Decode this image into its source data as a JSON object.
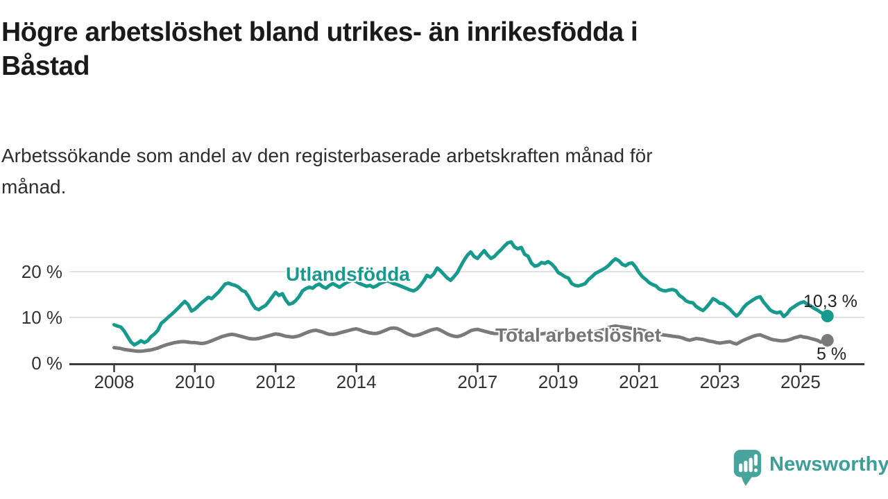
{
  "chart_data": {
    "type": "line",
    "title_lines": [
      "Högre arbetslöshet bland utrikes- än inrikesfödda i",
      "Båstad"
    ],
    "subtitle_lines": [
      "Arbetssökande som andel av den registerbaserade arbetskraften månad för",
      "månad."
    ],
    "xlabel": "",
    "ylabel": "",
    "x_start_year": 2008,
    "points_per_year": 12,
    "xlim": [
      2006.9,
      2026.6
    ],
    "ylim": [
      0,
      27.5
    ],
    "grid": "horizontal",
    "legend_position": "inline-labels",
    "x_tick_years": [
      2008,
      2010,
      2012,
      2014,
      2017,
      2019,
      2021,
      2023,
      2025
    ],
    "y_ticks": [
      {
        "value": 0,
        "label": "0 %"
      },
      {
        "value": 10,
        "label": "10 %"
      },
      {
        "value": 20,
        "label": "20 %"
      }
    ],
    "series": [
      {
        "name": "Utlandsfödda",
        "color": "#169a8d",
        "end_label": "10,3 %",
        "end_value": 10.3,
        "values": [
          8.4,
          8.1,
          7.9,
          7.0,
          5.8,
          4.6,
          4.0,
          4.4,
          4.9,
          4.5,
          4.9,
          5.8,
          6.4,
          7.2,
          8.7,
          9.3,
          10.0,
          10.6,
          11.3,
          12.0,
          12.8,
          13.5,
          12.8,
          11.4,
          11.8,
          12.5,
          13.2,
          13.8,
          14.4,
          14.1,
          14.8,
          15.5,
          16.4,
          17.3,
          17.5,
          17.2,
          17.0,
          16.6,
          15.9,
          15.6,
          14.5,
          13.0,
          12.0,
          11.7,
          12.2,
          12.6,
          13.5,
          14.5,
          15.5,
          14.8,
          15.2,
          13.8,
          12.9,
          13.1,
          13.7,
          14.6,
          15.8,
          16.3,
          16.6,
          16.4,
          17.0,
          17.3,
          16.7,
          16.4,
          17.0,
          17.4,
          17.0,
          16.6,
          17.1,
          17.6,
          17.9,
          18.1,
          17.8,
          17.4,
          17.1,
          16.8,
          17.0,
          16.6,
          16.9,
          17.4,
          17.7,
          18.0,
          17.8,
          17.4,
          17.2,
          16.9,
          16.6,
          16.3,
          16.0,
          15.8,
          16.2,
          17.0,
          18.0,
          19.2,
          18.8,
          19.5,
          20.8,
          20.2,
          19.4,
          18.6,
          18.1,
          18.9,
          19.8,
          21.2,
          22.5,
          23.6,
          24.3,
          23.3,
          22.9,
          23.8,
          24.6,
          23.6,
          22.9,
          23.3,
          24.1,
          24.8,
          25.6,
          26.3,
          26.5,
          25.4,
          25.0,
          25.3,
          23.8,
          23.4,
          21.9,
          21.2,
          21.4,
          22.0,
          21.8,
          22.2,
          21.7,
          20.9,
          19.8,
          19.4,
          18.9,
          18.6,
          17.4,
          17.0,
          16.9,
          17.1,
          17.4,
          18.3,
          18.9,
          19.6,
          20.0,
          20.4,
          20.8,
          21.4,
          22.2,
          22.8,
          22.4,
          21.6,
          21.3,
          21.8,
          21.9,
          21.0,
          19.8,
          18.9,
          18.3,
          17.6,
          17.2,
          16.9,
          16.2,
          15.9,
          15.8,
          16.0,
          16.1,
          15.8,
          14.8,
          14.3,
          13.6,
          13.3,
          13.2,
          12.4,
          11.9,
          11.5,
          12.2,
          13.1,
          14.1,
          13.7,
          13.1,
          13.0,
          12.4,
          11.8,
          11.0,
          10.3,
          11.0,
          12.1,
          12.9,
          13.4,
          13.9,
          14.3,
          14.5,
          13.4,
          12.5,
          11.6,
          11.2,
          11.0,
          11.2,
          10.2,
          10.8,
          11.8,
          12.3,
          12.8,
          13.2,
          13.4,
          12.9,
          12.5,
          12.0,
          11.6,
          11.1,
          10.7,
          10.3
        ]
      },
      {
        "name": "Total arbetslöshet",
        "color": "#7a7a7a",
        "end_label": "5 %",
        "end_value": 5.0,
        "values": [
          3.4,
          3.3,
          3.2,
          3.0,
          2.9,
          2.8,
          2.7,
          2.6,
          2.6,
          2.7,
          2.8,
          2.9,
          3.1,
          3.3,
          3.6,
          3.9,
          4.1,
          4.3,
          4.5,
          4.6,
          4.7,
          4.7,
          4.6,
          4.5,
          4.5,
          4.4,
          4.3,
          4.4,
          4.6,
          4.9,
          5.2,
          5.5,
          5.8,
          6.0,
          6.2,
          6.3,
          6.2,
          6.0,
          5.8,
          5.6,
          5.4,
          5.3,
          5.3,
          5.4,
          5.6,
          5.8,
          6.0,
          6.2,
          6.4,
          6.3,
          6.1,
          5.9,
          5.8,
          5.7,
          5.8,
          6.0,
          6.3,
          6.6,
          6.9,
          7.1,
          7.2,
          7.0,
          6.8,
          6.5,
          6.3,
          6.3,
          6.4,
          6.6,
          6.8,
          7.0,
          7.2,
          7.4,
          7.5,
          7.3,
          7.0,
          6.8,
          6.6,
          6.5,
          6.5,
          6.7,
          7.0,
          7.3,
          7.6,
          7.7,
          7.6,
          7.3,
          6.9,
          6.5,
          6.2,
          6.0,
          6.1,
          6.3,
          6.6,
          6.9,
          7.2,
          7.4,
          7.5,
          7.2,
          6.8,
          6.4,
          6.1,
          5.9,
          5.8,
          6.0,
          6.3,
          6.7,
          7.1,
          7.3,
          7.4,
          7.2,
          7.0,
          6.8,
          6.6,
          6.5,
          6.5,
          6.6,
          6.8,
          7.0,
          7.1,
          7.2,
          7.2,
          7.0,
          6.8,
          6.6,
          6.4,
          6.3,
          6.3,
          6.4,
          6.5,
          6.7,
          6.8,
          6.9,
          6.9,
          6.7,
          6.5,
          6.3,
          6.1,
          6.0,
          6.0,
          6.1,
          6.3,
          6.5,
          6.7,
          6.9,
          7.0,
          7.2,
          7.5,
          7.8,
          8.0,
          8.1,
          8.0,
          7.9,
          7.8,
          7.7,
          7.6,
          7.5,
          7.4,
          7.2,
          7.0,
          6.8,
          6.6,
          6.4,
          6.3,
          6.2,
          6.1,
          6.0,
          5.9,
          5.8,
          5.7,
          5.5,
          5.2,
          5.0,
          5.2,
          5.4,
          5.3,
          5.2,
          5.0,
          4.8,
          4.7,
          4.5,
          4.4,
          4.5,
          4.6,
          4.7,
          4.4,
          4.2,
          4.6,
          5.0,
          5.3,
          5.6,
          5.9,
          6.1,
          6.2,
          5.9,
          5.6,
          5.3,
          5.1,
          5.0,
          4.9,
          4.9,
          5.0,
          5.2,
          5.5,
          5.7,
          5.9,
          5.7,
          5.6,
          5.4,
          5.2,
          5.0,
          4.6,
          4.8,
          5.0
        ]
      }
    ],
    "colors": {
      "grid": "#d8d8d8",
      "axis": "#3a3a3a",
      "tick_text": "#333333",
      "value_text": "#222222"
    }
  },
  "footer": {
    "brand": "Newsworthy",
    "brand_color": "#3b9e97",
    "logo_icon": "speech-bubble-bar-chart-icon"
  }
}
